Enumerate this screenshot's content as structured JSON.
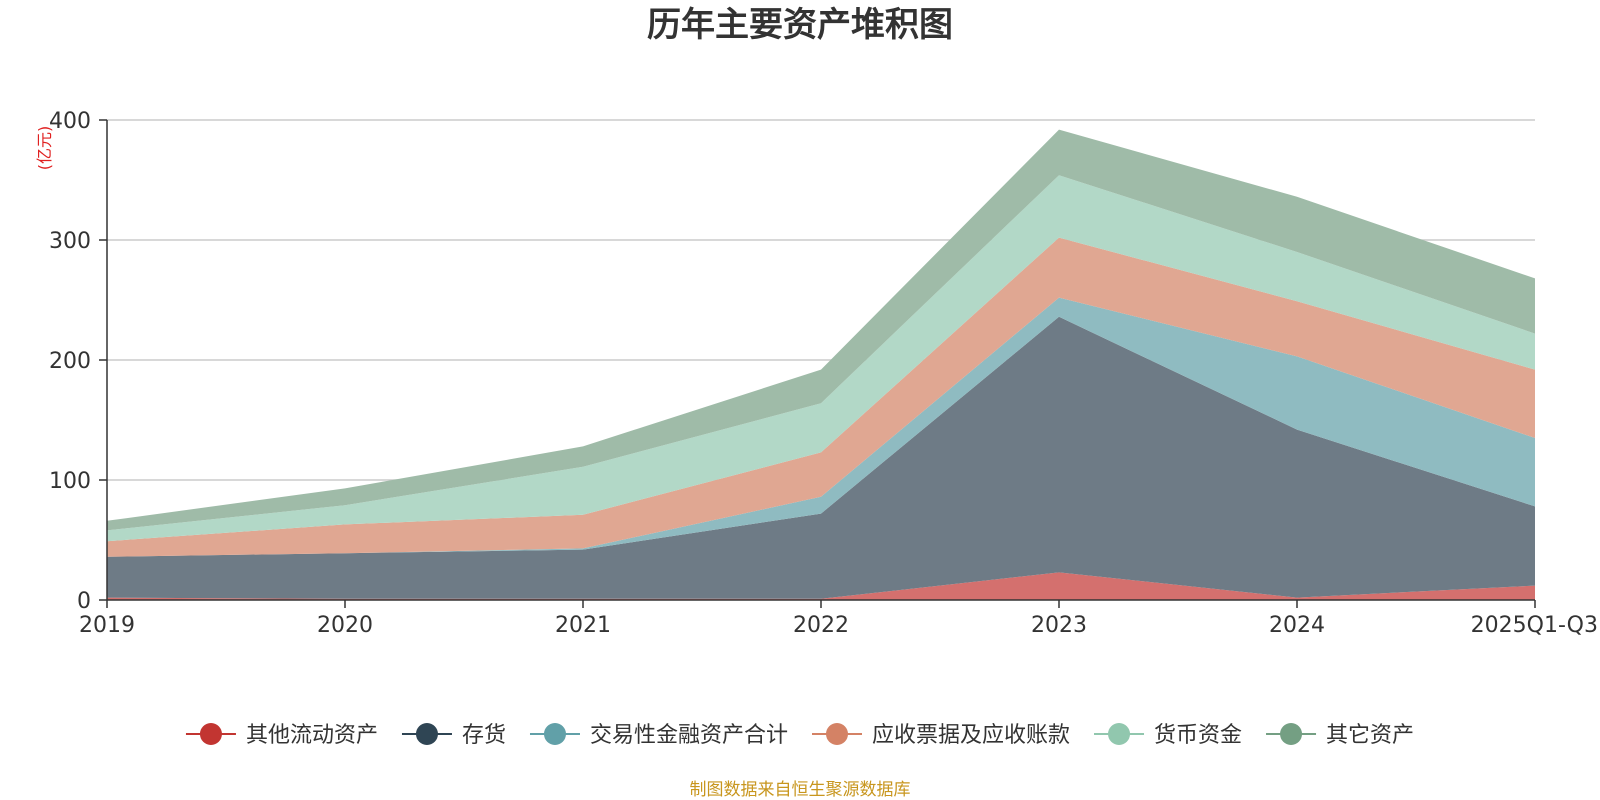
{
  "chart_data": {
    "type": "area",
    "stacked": true,
    "title": "历年主要资产堆积图",
    "ylabel": "(亿元)",
    "xlabel": "",
    "ylim": [
      0,
      400
    ],
    "yticks": [
      0,
      100,
      200,
      300,
      400
    ],
    "categories": [
      "2019",
      "2020",
      "2021",
      "2022",
      "2023",
      "2024",
      "2025Q1-Q3"
    ],
    "grid": true,
    "legend_position": "bottom",
    "series": [
      {
        "name": "其他流动资产",
        "color": "#c23531",
        "area_color": "#d4706e",
        "values": [
          2,
          1,
          1,
          1,
          23,
          2,
          12
        ]
      },
      {
        "name": "存货",
        "color": "#2f4554",
        "area_color": "#6e7b86",
        "values": [
          34,
          38,
          41,
          71,
          213,
          140,
          66
        ]
      },
      {
        "name": "交易性金融资产合计",
        "color": "#61a0a8",
        "area_color": "#8fbbc1",
        "values": [
          0,
          0,
          1,
          14,
          16,
          61,
          57
        ]
      },
      {
        "name": "应收票据及应收账款",
        "color": "#d48265",
        "area_color": "#e0a792",
        "values": [
          13,
          24,
          28,
          37,
          50,
          46,
          57
        ]
      },
      {
        "name": "货币资金",
        "color": "#91c7ae",
        "area_color": "#b2d8c7",
        "values": [
          9,
          16,
          40,
          41,
          52,
          41,
          30
        ]
      },
      {
        "name": "其它资产",
        "color": "#749f83",
        "area_color": "#9fbba8",
        "values": [
          8,
          14,
          17,
          28,
          38,
          46,
          46
        ]
      }
    ],
    "source_note": "制图数据来自恒生聚源数据库"
  }
}
